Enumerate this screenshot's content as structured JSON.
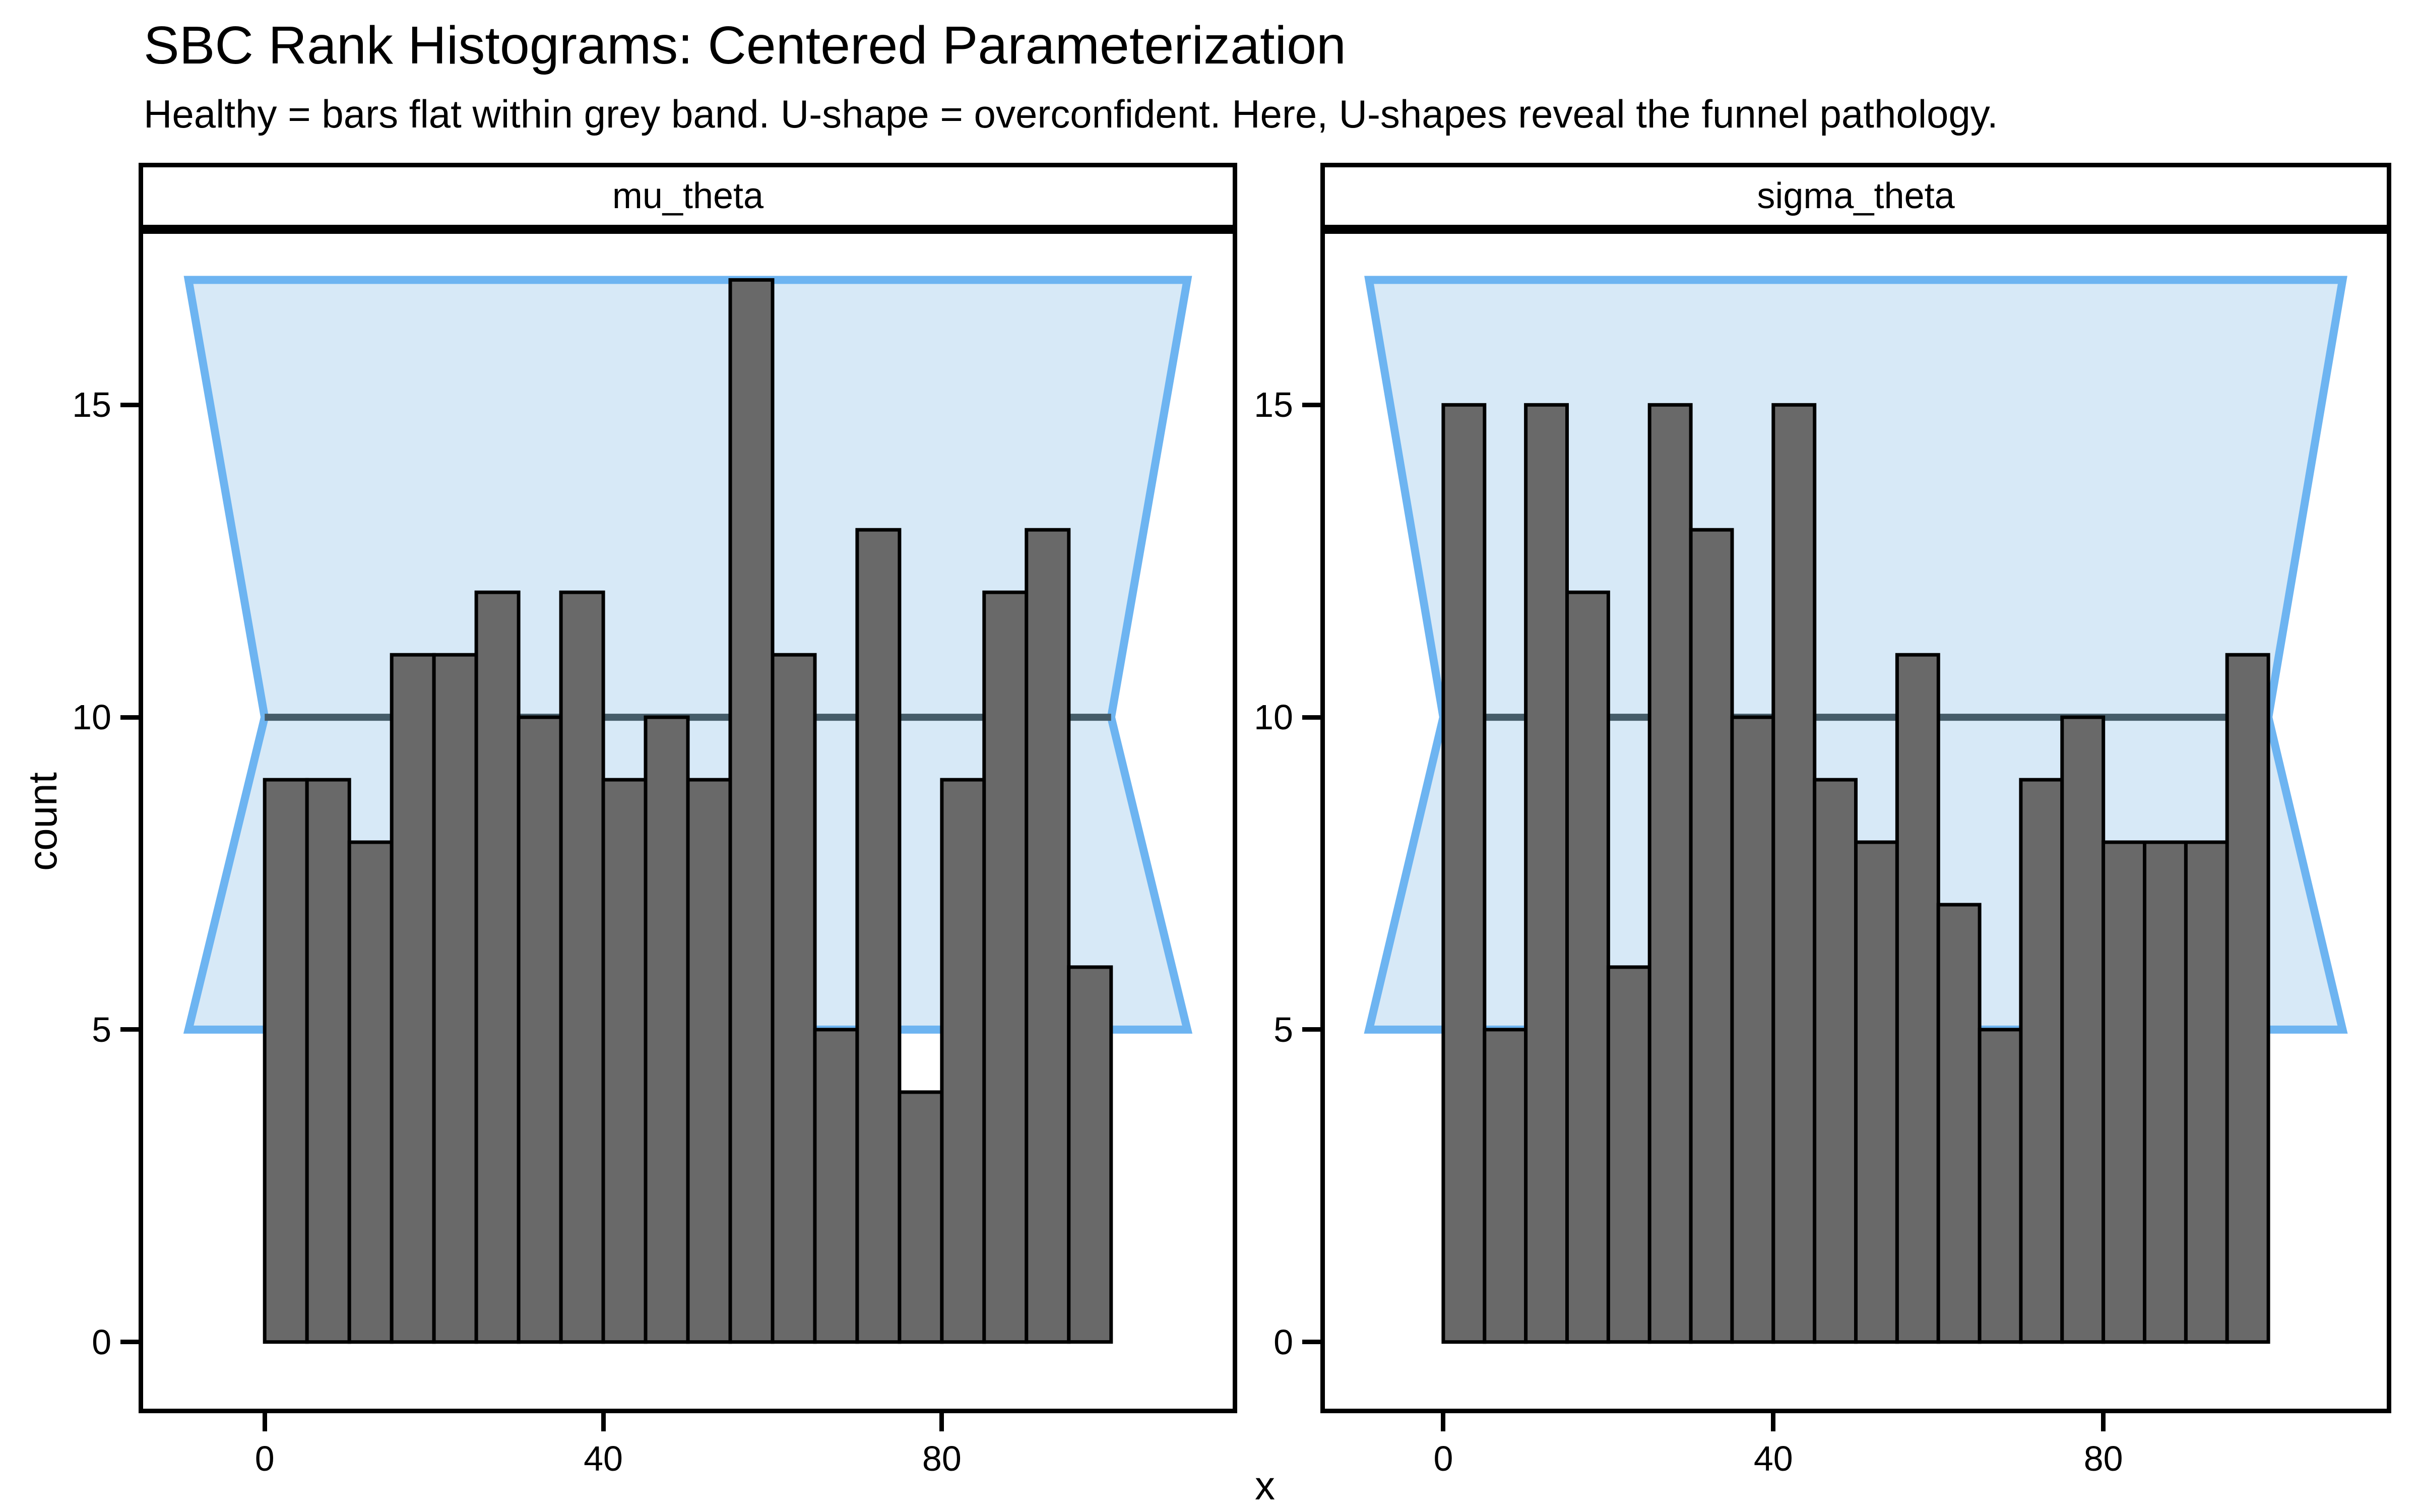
{
  "title": "SBC Rank Histograms: Centered Parameterization",
  "subtitle": "Healthy = bars flat within grey band. U-shape = overconfident. Here, U-shapes reveal the funnel pathology.",
  "axes": {
    "x_label": "x",
    "y_label": "count",
    "x_ticks": [
      0,
      40,
      80
    ],
    "y_ticks": [
      0,
      5,
      10,
      15
    ]
  },
  "colors": {
    "background": "#ffffff",
    "bar_fill": "#696969",
    "bar_stroke": "#000000",
    "band_fill": "#d7e9f7",
    "band_stroke": "#6db4f1",
    "expected_line": "#455c69",
    "panel_border": "#000000",
    "strip_background": "#ffffff",
    "strip_border": "#000000",
    "text": "#000000"
  },
  "chart_data": [
    {
      "type": "bar",
      "facet": "mu_theta",
      "bin_start": 0,
      "bin_width": 5,
      "values": [
        9,
        9,
        8,
        11,
        11,
        12,
        10,
        12,
        9,
        10,
        9,
        17,
        11,
        5,
        13,
        4,
        9,
        12,
        13,
        6
      ],
      "band": {
        "lower": 5,
        "mid": 10,
        "upper": 17,
        "x_inner": [
          0,
          100
        ],
        "x_outer": [
          -9,
          109
        ]
      },
      "xlim": [
        -14.9,
        114.9
      ],
      "ylim": [
        -1.14,
        17.81
      ],
      "grid": false
    },
    {
      "type": "bar",
      "facet": "sigma_theta",
      "bin_start": 0,
      "bin_width": 5,
      "values": [
        15,
        5,
        15,
        12,
        6,
        15,
        13,
        10,
        15,
        9,
        8,
        11,
        7,
        5,
        9,
        10,
        8,
        8,
        8,
        11
      ],
      "band": {
        "lower": 5,
        "mid": 10,
        "upper": 17,
        "x_inner": [
          0,
          100
        ],
        "x_outer": [
          -9,
          109
        ]
      },
      "xlim": [
        -14.9,
        114.9
      ],
      "ylim": [
        -1.14,
        17.81
      ],
      "grid": false
    }
  ]
}
